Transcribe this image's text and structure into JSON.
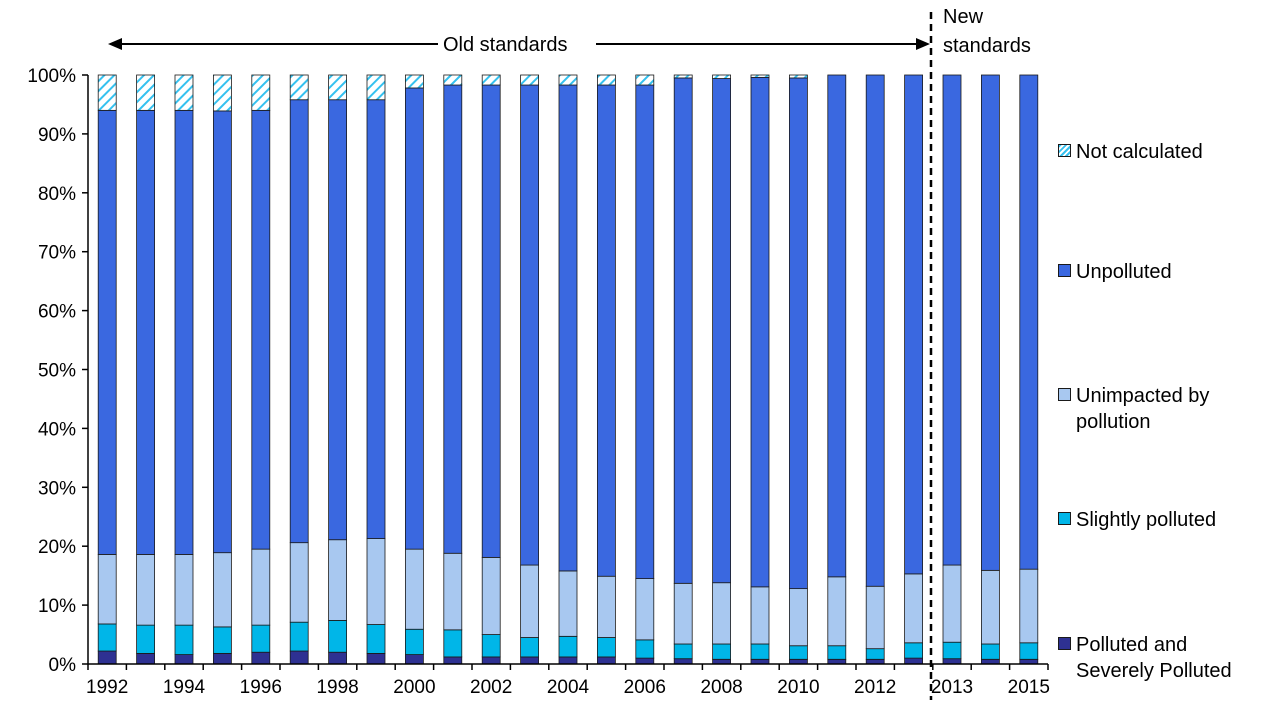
{
  "chart_data": {
    "type": "bar",
    "stacked": true,
    "categories": [
      "1992",
      "1993",
      "1994",
      "1995",
      "1996",
      "1997",
      "1998",
      "1999",
      "2000",
      "2001",
      "2002",
      "2003",
      "2004",
      "2005",
      "2006",
      "2007",
      "2008",
      "2009",
      "2010",
      "2011",
      "2012",
      "2013",
      "2013",
      "2014",
      "2015"
    ],
    "x_tick_labels": [
      "1992",
      "",
      "1994",
      "",
      "1996",
      "",
      "1998",
      "",
      "2000",
      "",
      "2002",
      "",
      "2004",
      "",
      "2006",
      "",
      "2008",
      "",
      "2010",
      "",
      "2012",
      "",
      "2013",
      "",
      "2015"
    ],
    "ylim": [
      0,
      100
    ],
    "y_tick_labels": [
      "0%",
      "10%",
      "20%",
      "30%",
      "40%",
      "50%",
      "60%",
      "70%",
      "80%",
      "90%",
      "100%"
    ],
    "series": [
      {
        "name": "Polluted and Severely Polluted",
        "color": "#2e3192",
        "values": [
          2.2,
          1.8,
          1.6,
          1.8,
          2.0,
          2.2,
          2.0,
          1.8,
          1.6,
          1.2,
          1.2,
          1.2,
          1.2,
          1.2,
          1.0,
          0.9,
          0.8,
          0.8,
          0.8,
          0.8,
          0.8,
          1.0,
          0.9,
          0.8,
          0.8
        ]
      },
      {
        "name": "Slightly polluted",
        "color": "#00b6e8",
        "values": [
          4.6,
          4.8,
          5.0,
          4.5,
          4.6,
          4.9,
          5.4,
          4.9,
          4.3,
          4.6,
          3.8,
          3.3,
          3.5,
          3.3,
          3.1,
          2.5,
          2.6,
          2.6,
          2.3,
          2.3,
          1.8,
          2.6,
          2.8,
          2.6,
          2.8
        ]
      },
      {
        "name": "Unimpacted by pollution",
        "color": "#a8c8f0",
        "values": [
          11.8,
          12.0,
          12.0,
          12.6,
          12.9,
          13.5,
          13.7,
          14.6,
          13.6,
          13.0,
          13.1,
          12.3,
          11.1,
          10.4,
          10.4,
          10.3,
          10.4,
          9.7,
          9.7,
          11.7,
          10.6,
          11.7,
          13.1,
          12.5,
          12.5
        ]
      },
      {
        "name": "Unpolluted",
        "color": "#3a68e0",
        "values": [
          75.4,
          75.4,
          75.4,
          75.0,
          74.5,
          75.2,
          74.7,
          74.5,
          78.3,
          79.5,
          80.2,
          81.5,
          82.5,
          83.4,
          83.8,
          85.8,
          85.6,
          86.5,
          86.7,
          85.2,
          86.8,
          84.7,
          83.2,
          84.1,
          83.9
        ]
      },
      {
        "name": "Not calculated",
        "color": "#35c1ef",
        "pattern": "hatch",
        "values": [
          6.0,
          6.0,
          6.0,
          6.1,
          6.0,
          4.2,
          4.2,
          4.2,
          2.2,
          1.7,
          1.7,
          1.7,
          1.7,
          1.7,
          1.7,
          0.5,
          0.6,
          0.4,
          0.5,
          0.0,
          0.0,
          0.0,
          0.0,
          0.0,
          0.0
        ]
      }
    ],
    "annotations": {
      "old_standards": "Old standards",
      "new_standards_line1": "New",
      "new_standards_line2": "standards"
    },
    "legend": {
      "position": "right",
      "items": [
        {
          "label": "Not calculated",
          "color": "#35c1ef",
          "pattern": "hatch"
        },
        {
          "label": "Unpolluted",
          "color": "#3a68e0"
        },
        {
          "label": "Unimpacted by pollution",
          "color": "#a8c8f0"
        },
        {
          "label": "Slightly polluted",
          "color": "#00b6e8"
        },
        {
          "label": "Polluted and Severely Polluted",
          "color": "#2e3192"
        }
      ]
    },
    "grid": false
  }
}
